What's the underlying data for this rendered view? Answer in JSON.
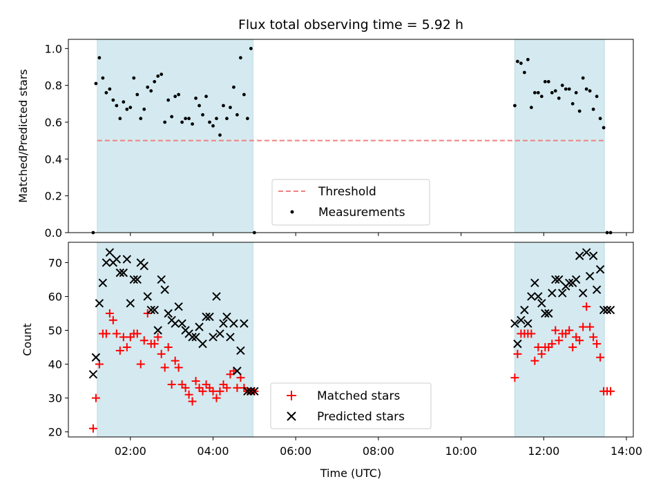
{
  "chart_data": [
    {
      "type": "scatter",
      "title": "Flux total observing time = 5.92 h",
      "xlabel": "",
      "ylabel": "Matched/Predicted stars",
      "xlim": [
        "00:30",
        "14:10"
      ],
      "ylim": [
        0,
        1.05
      ],
      "yticks": [
        0.0,
        0.2,
        0.4,
        0.6,
        0.8,
        1.0
      ],
      "ytick_labels": [
        "0.0",
        "0.2",
        "0.4",
        "0.6",
        "0.8",
        "1.0"
      ],
      "legend_position": "lower center",
      "shaded_intervals": [
        [
          "01:12",
          "04:58"
        ],
        [
          "11:18",
          "13:28"
        ]
      ],
      "shade_color": "#d4eaf0",
      "threshold": {
        "name": "Threshold",
        "value": 0.5,
        "x_range": [
          "01:12",
          "13:28"
        ],
        "color": "#f08080",
        "style": "dashed"
      },
      "series": [
        {
          "name": "Measurements",
          "color": "#000000",
          "marker": "dot",
          "x": [
            "01:06",
            "01:10",
            "01:15",
            "01:20",
            "01:25",
            "01:30",
            "01:35",
            "01:40",
            "01:45",
            "01:50",
            "01:55",
            "02:00",
            "02:05",
            "02:10",
            "02:15",
            "02:20",
            "02:25",
            "02:30",
            "02:35",
            "02:40",
            "02:45",
            "02:50",
            "02:55",
            "03:00",
            "03:05",
            "03:10",
            "03:15",
            "03:20",
            "03:25",
            "03:30",
            "03:35",
            "03:40",
            "03:45",
            "03:50",
            "03:55",
            "04:00",
            "04:05",
            "04:10",
            "04:15",
            "04:20",
            "04:25",
            "04:30",
            "04:35",
            "04:40",
            "04:45",
            "04:50",
            "04:55",
            "05:00",
            "11:18",
            "11:22",
            "11:27",
            "11:32",
            "11:37",
            "11:42",
            "11:47",
            "11:52",
            "11:57",
            "12:02",
            "12:07",
            "12:12",
            "12:17",
            "12:22",
            "12:27",
            "12:32",
            "12:37",
            "12:42",
            "12:47",
            "12:52",
            "12:57",
            "13:02",
            "13:07",
            "13:12",
            "13:17",
            "13:22",
            "13:27",
            "13:32",
            "13:37"
          ],
          "y": [
            0.0,
            0.81,
            0.95,
            0.84,
            0.76,
            0.78,
            0.72,
            0.69,
            0.62,
            0.71,
            0.67,
            0.68,
            0.84,
            0.75,
            0.62,
            0.67,
            0.79,
            0.77,
            0.82,
            0.85,
            0.86,
            0.6,
            0.72,
            0.63,
            0.74,
            0.75,
            0.6,
            0.62,
            0.62,
            0.59,
            0.73,
            0.69,
            0.64,
            0.74,
            0.6,
            0.58,
            0.62,
            0.53,
            0.69,
            0.62,
            0.68,
            0.79,
            0.64,
            0.95,
            0.75,
            0.62,
            1.0,
            0.0,
            0.69,
            0.93,
            0.92,
            0.87,
            0.94,
            0.68,
            0.76,
            0.76,
            0.74,
            0.82,
            0.82,
            0.76,
            0.77,
            0.73,
            0.8,
            0.78,
            0.78,
            0.7,
            0.76,
            0.66,
            0.84,
            0.78,
            0.77,
            0.67,
            0.74,
            0.62,
            0.57,
            0.0,
            0.0
          ]
        }
      ]
    },
    {
      "type": "scatter",
      "title": "",
      "xlabel": "Time (UTC)",
      "ylabel": "Count",
      "xlim": [
        "00:30",
        "14:10"
      ],
      "ylim": [
        18.5,
        76
      ],
      "xticks": [
        "02:00",
        "04:00",
        "06:00",
        "08:00",
        "10:00",
        "12:00",
        "14:00"
      ],
      "xtick_labels": [
        "02:00",
        "04:00",
        "06:00",
        "08:00",
        "10:00",
        "12:00",
        "14:00"
      ],
      "yticks": [
        20,
        30,
        40,
        50,
        60,
        70
      ],
      "ytick_labels": [
        "20",
        "30",
        "40",
        "50",
        "60",
        "70"
      ],
      "legend_position": "lower center",
      "shaded_intervals": [
        [
          "01:12",
          "04:58"
        ],
        [
          "11:18",
          "13:28"
        ]
      ],
      "shade_color": "#d4eaf0",
      "series": [
        {
          "name": "Matched stars",
          "color": "#ff0000",
          "marker": "plus",
          "x": [
            "01:06",
            "01:10",
            "01:15",
            "01:20",
            "01:25",
            "01:30",
            "01:35",
            "01:40",
            "01:45",
            "01:50",
            "01:55",
            "02:00",
            "02:05",
            "02:10",
            "02:15",
            "02:20",
            "02:25",
            "02:30",
            "02:35",
            "02:40",
            "02:45",
            "02:50",
            "02:55",
            "03:00",
            "03:05",
            "03:10",
            "03:15",
            "03:20",
            "03:25",
            "03:30",
            "03:35",
            "03:40",
            "03:45",
            "03:50",
            "03:55",
            "04:00",
            "04:05",
            "04:10",
            "04:15",
            "04:20",
            "04:25",
            "04:30",
            "04:35",
            "04:40",
            "04:45",
            "04:50",
            "04:55",
            "05:00",
            "11:18",
            "11:22",
            "11:27",
            "11:32",
            "11:37",
            "11:42",
            "11:47",
            "11:52",
            "11:57",
            "12:02",
            "12:07",
            "12:12",
            "12:17",
            "12:22",
            "12:27",
            "12:32",
            "12:37",
            "12:42",
            "12:47",
            "12:52",
            "12:57",
            "13:02",
            "13:07",
            "13:12",
            "13:17",
            "13:22",
            "13:27",
            "13:32",
            "13:37"
          ],
          "y": [
            21,
            30,
            40,
            49,
            49,
            55,
            53,
            49,
            44,
            48,
            45,
            48,
            49,
            49,
            40,
            47,
            55,
            46,
            46,
            48,
            43,
            39,
            45,
            34,
            41,
            39,
            34,
            33,
            31,
            29,
            35,
            33,
            32,
            34,
            33,
            32,
            30,
            32,
            34,
            33,
            37,
            38,
            33,
            36,
            33,
            32,
            32,
            32,
            36,
            43,
            49,
            49,
            49,
            49,
            41,
            45,
            43,
            45,
            45,
            46,
            50,
            47,
            49,
            49,
            50,
            45,
            48,
            47,
            51,
            57,
            51,
            48,
            46,
            42,
            32,
            32,
            32
          ]
        },
        {
          "name": "Predicted stars",
          "color": "#000000",
          "marker": "x",
          "x": [
            "01:06",
            "01:10",
            "01:15",
            "01:20",
            "01:25",
            "01:30",
            "01:35",
            "01:40",
            "01:45",
            "01:50",
            "01:55",
            "02:00",
            "02:05",
            "02:10",
            "02:15",
            "02:20",
            "02:25",
            "02:30",
            "02:35",
            "02:40",
            "02:45",
            "02:50",
            "02:55",
            "03:00",
            "03:05",
            "03:10",
            "03:15",
            "03:20",
            "03:25",
            "03:30",
            "03:35",
            "03:40",
            "03:45",
            "03:50",
            "03:55",
            "04:00",
            "04:05",
            "04:10",
            "04:15",
            "04:20",
            "04:25",
            "04:30",
            "04:35",
            "04:40",
            "04:45",
            "04:50",
            "04:55",
            "05:00",
            "11:18",
            "11:22",
            "11:27",
            "11:32",
            "11:37",
            "11:42",
            "11:47",
            "11:52",
            "11:57",
            "12:02",
            "12:07",
            "12:12",
            "12:17",
            "12:22",
            "12:27",
            "12:32",
            "12:37",
            "12:42",
            "12:47",
            "12:52",
            "12:57",
            "13:02",
            "13:07",
            "13:12",
            "13:17",
            "13:22",
            "13:27",
            "13:32",
            "13:37"
          ],
          "y": [
            37,
            42,
            58,
            64,
            70,
            73,
            70,
            71,
            67,
            67,
            71,
            58,
            65,
            65,
            70,
            69,
            60,
            56,
            56,
            50,
            65,
            62,
            55,
            53,
            52,
            57,
            52,
            50,
            49,
            48,
            48,
            51,
            46,
            54,
            54,
            48,
            60,
            49,
            52,
            54,
            48,
            52,
            38,
            44,
            52,
            32,
            32,
            32,
            52,
            46,
            53,
            56,
            52,
            60,
            64,
            60,
            58,
            55,
            55,
            61,
            65,
            65,
            61,
            63,
            64,
            64,
            65,
            72,
            61,
            73,
            66,
            72,
            62,
            68,
            56,
            56,
            56
          ]
        }
      ]
    }
  ]
}
